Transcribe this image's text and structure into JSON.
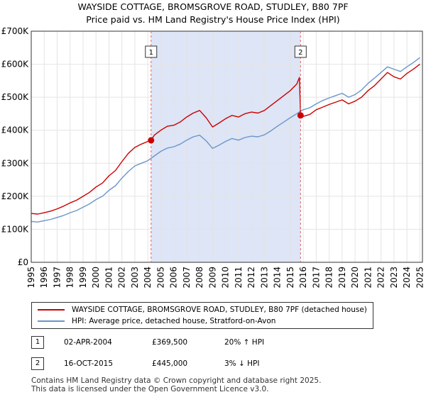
{
  "chart_data": {
    "type": "line",
    "title": "WAYSIDE COTTAGE, BROMSGROVE ROAD, STUDLEY, B80 7PF",
    "subtitle": "Price paid vs. HM Land Registry's House Price Index (HPI)",
    "xlim": [
      1995,
      2025.2
    ],
    "ylim": [
      0,
      700000
    ],
    "y_ticks": [
      0,
      100000,
      200000,
      300000,
      400000,
      500000,
      600000,
      700000
    ],
    "y_tick_labels": [
      "£0",
      "£100K",
      "£200K",
      "£300K",
      "£400K",
      "£500K",
      "£600K",
      "£700K"
    ],
    "x_ticks": [
      "1995",
      "1996",
      "1997",
      "1998",
      "1999",
      "2000",
      "2001",
      "2002",
      "2003",
      "2004",
      "2005",
      "2006",
      "2007",
      "2008",
      "2009",
      "2010",
      "2011",
      "2012",
      "2013",
      "2014",
      "2015",
      "2016",
      "2017",
      "2018",
      "2019",
      "2020",
      "2021",
      "2022",
      "2023",
      "2024",
      "2025"
    ],
    "shaded_region": [
      2004.25,
      2015.79
    ],
    "colors": {
      "property": "#cc0000",
      "hpi": "#6a96c8",
      "shade": "#dde5f6",
      "marker_line": "#e06060"
    },
    "series": [
      {
        "name": "WAYSIDE COTTAGE, BROMSGROVE ROAD, STUDLEY, B80 7PF (detached house)",
        "color": "#cc0000",
        "x": [
          1995.0,
          1995.5,
          1996.0,
          1996.5,
          1997.0,
          1997.5,
          1998.0,
          1998.5,
          1999.0,
          1999.5,
          2000.0,
          2000.5,
          2001.0,
          2001.5,
          2002.0,
          2002.5,
          2003.0,
          2003.5,
          2004.0,
          2004.25,
          2004.5,
          2005.0,
          2005.5,
          2006.0,
          2006.5,
          2007.0,
          2007.5,
          2008.0,
          2008.5,
          2009.0,
          2009.5,
          2010.0,
          2010.5,
          2011.0,
          2011.5,
          2012.0,
          2012.5,
          2013.0,
          2013.5,
          2014.0,
          2014.5,
          2015.0,
          2015.5,
          2015.7,
          2015.79,
          2016.0,
          2016.5,
          2017.0,
          2017.5,
          2018.0,
          2018.5,
          2019.0,
          2019.5,
          2020.0,
          2020.5,
          2021.0,
          2021.5,
          2022.0,
          2022.5,
          2023.0,
          2023.5,
          2024.0,
          2024.5,
          2025.0
        ],
        "values": [
          148000,
          146000,
          150000,
          155000,
          162000,
          170000,
          180000,
          188000,
          200000,
          212000,
          228000,
          240000,
          262000,
          278000,
          305000,
          330000,
          348000,
          358000,
          366000,
          369500,
          385000,
          400000,
          412000,
          415000,
          425000,
          440000,
          452000,
          460000,
          438000,
          410000,
          422000,
          435000,
          445000,
          440000,
          450000,
          455000,
          452000,
          460000,
          475000,
          490000,
          505000,
          520000,
          540000,
          560000,
          445000,
          442000,
          448000,
          462000,
          470000,
          478000,
          485000,
          492000,
          480000,
          488000,
          500000,
          520000,
          535000,
          555000,
          575000,
          562000,
          555000,
          572000,
          585000,
          600000
        ]
      },
      {
        "name": "HPI: Average price, detached house, Stratford-on-Avon",
        "color": "#6a96c8",
        "x": [
          1995.0,
          1995.5,
          1996.0,
          1996.5,
          1997.0,
          1997.5,
          1998.0,
          1998.5,
          1999.0,
          1999.5,
          2000.0,
          2000.5,
          2001.0,
          2001.5,
          2002.0,
          2002.5,
          2003.0,
          2003.5,
          2004.0,
          2004.5,
          2005.0,
          2005.5,
          2006.0,
          2006.5,
          2007.0,
          2007.5,
          2008.0,
          2008.5,
          2009.0,
          2009.5,
          2010.0,
          2010.5,
          2011.0,
          2011.5,
          2012.0,
          2012.5,
          2013.0,
          2013.5,
          2014.0,
          2014.5,
          2015.0,
          2015.5,
          2015.79,
          2016.0,
          2016.5,
          2017.0,
          2017.5,
          2018.0,
          2018.5,
          2019.0,
          2019.5,
          2020.0,
          2020.5,
          2021.0,
          2021.5,
          2022.0,
          2022.5,
          2023.0,
          2023.5,
          2024.0,
          2024.5,
          2025.0
        ],
        "values": [
          124000,
          122000,
          126000,
          130000,
          136000,
          142000,
          150000,
          157000,
          167000,
          177000,
          190000,
          200000,
          218000,
          232000,
          255000,
          275000,
          292000,
          300000,
          308000,
          322000,
          336000,
          346000,
          350000,
          358000,
          370000,
          380000,
          385000,
          368000,
          345000,
          355000,
          366000,
          375000,
          370000,
          378000,
          382000,
          380000,
          386000,
          398000,
          412000,
          425000,
          438000,
          450000,
          458000,
          462000,
          468000,
          480000,
          490000,
          498000,
          505000,
          512000,
          500000,
          508000,
          522000,
          542000,
          558000,
          575000,
          592000,
          585000,
          578000,
          592000,
          605000,
          620000
        ]
      }
    ],
    "annotations": [
      {
        "label": "1",
        "x": 2004.25,
        "y": 369500
      },
      {
        "label": "2",
        "x": 2015.79,
        "y": 445000
      }
    ]
  },
  "legend": {
    "property_label": "WAYSIDE COTTAGE, BROMSGROVE ROAD, STUDLEY, B80 7PF (detached house)",
    "hpi_label": "HPI: Average price, detached house, Stratford-on-Avon"
  },
  "transactions": [
    {
      "num": "1",
      "date": "02-APR-2004",
      "price": "£369,500",
      "hpi": "20% ↑ HPI"
    },
    {
      "num": "2",
      "date": "16-OCT-2015",
      "price": "£445,000",
      "hpi": "3% ↓ HPI"
    }
  ],
  "footer": {
    "line1": "Contains HM Land Registry data © Crown copyright and database right 2025.",
    "line2": "This data is licensed under the Open Government Licence v3.0."
  }
}
